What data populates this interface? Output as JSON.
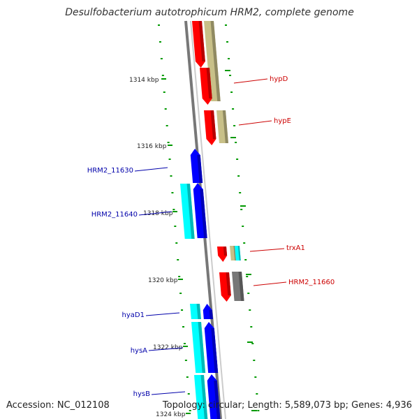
{
  "title": "Desulfobacterium autotrophicum HRM2, complete genome",
  "accession": "Accession: NC_012108",
  "summary": "Topology: circular; Length: 5,589,073 bp; Genes: 4,936",
  "colors": {
    "backbone": "#888888",
    "tick": "#009900",
    "forward_cds": "#ff0000",
    "forward_label": "#cc0000",
    "reverse_cds": "#0000ff",
    "reverse_label": "#0000aa",
    "reverse_feature": "#00ffff",
    "forward_feature": "#c8c088",
    "misc_feature": "#777777"
  },
  "scale_labels": [
    {
      "label": "1314 kbp"
    },
    {
      "label": "1316 kbp"
    },
    {
      "label": "1318 kbp"
    },
    {
      "label": "1320 kbp"
    },
    {
      "label": "1322 kbp"
    },
    {
      "label": "1324 kbp"
    }
  ],
  "genes": [
    {
      "name": "hypD",
      "strand": "+"
    },
    {
      "name": "hypE",
      "strand": "+"
    },
    {
      "name": "HRM2_11630",
      "strand": "-"
    },
    {
      "name": "HRM2_11640",
      "strand": "-"
    },
    {
      "name": "trxA1",
      "strand": "+"
    },
    {
      "name": "HRM2_11660",
      "strand": "+"
    },
    {
      "name": "hyaD1",
      "strand": "-"
    },
    {
      "name": "hysA",
      "strand": "-"
    },
    {
      "name": "hysB",
      "strand": "-"
    }
  ]
}
